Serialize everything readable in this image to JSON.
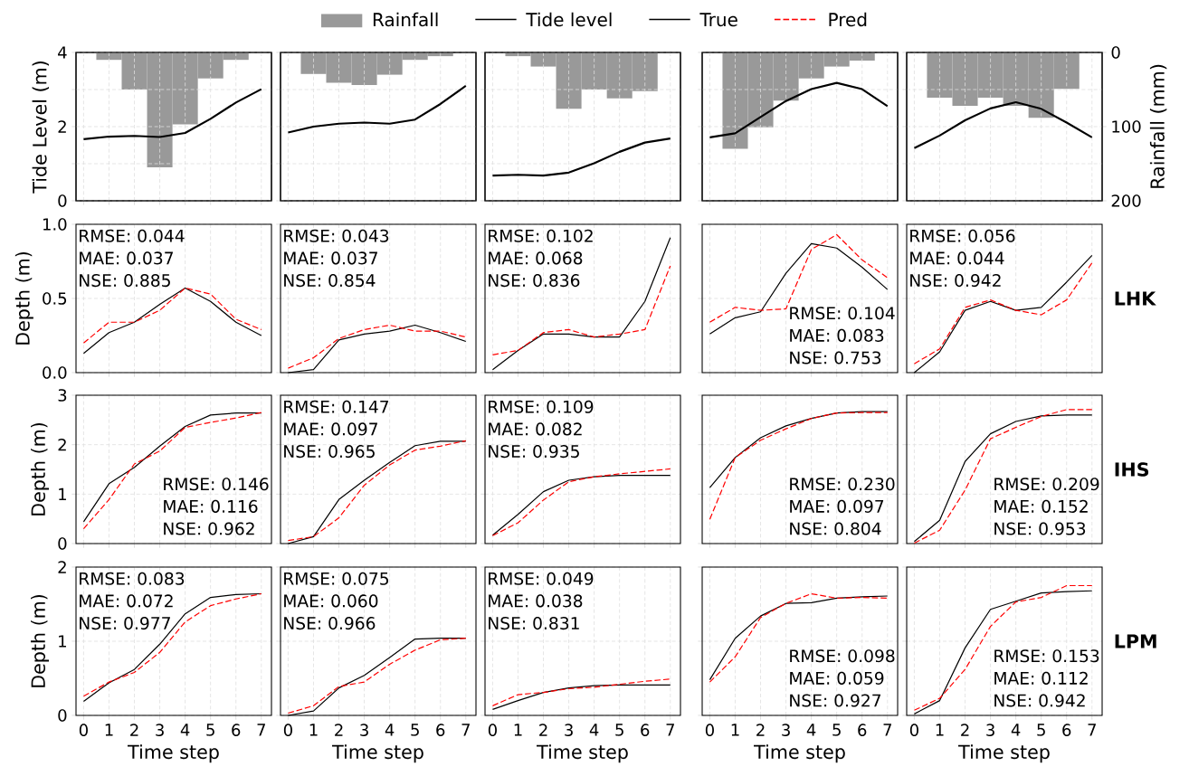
{
  "chart_data": [
    {
      "type": "line",
      "ylabel": "Tide Level (m)",
      "x": [
        0,
        1,
        2,
        3,
        4,
        5,
        6,
        7
      ],
      "xlim": [
        -0.3,
        7.4
      ],
      "xticks": [
        0,
        1,
        2,
        3,
        4,
        5,
        6,
        7
      ],
      "ylim": [
        0,
        4
      ],
      "yticks": [
        0,
        {
          "value": 1,
          "label": null
        },
        2,
        {
          "value": 3,
          "label": null
        },
        4
      ],
      "grid": true,
      "legend": "top",
      "tick_labels": "y",
      "series": [
        {
          "name": "Tide level",
          "color": "#000000",
          "values": [
            1.66,
            1.73,
            1.75,
            1.72,
            1.83,
            2.21,
            2.65,
            3.01
          ]
        }
      ]
    },
    {
      "type": "line",
      "x": [
        0,
        1,
        2,
        3,
        4,
        5,
        6,
        7
      ],
      "xlim": [
        -0.3,
        7.4
      ],
      "xticks": [
        0,
        1,
        2,
        3,
        4,
        5,
        6,
        7
      ],
      "ylim": [
        0,
        4
      ],
      "yticks": [
        0,
        {
          "value": 1,
          "label": null
        },
        2,
        {
          "value": 3,
          "label": null
        },
        4
      ],
      "grid": true,
      "tick_labels": false,
      "series": [
        {
          "color": "#000000",
          "values": [
            1.84,
            2.0,
            2.08,
            2.11,
            2.08,
            2.19,
            2.61,
            3.1
          ]
        }
      ]
    },
    {
      "type": "line",
      "x": [
        0,
        1,
        2,
        3,
        4,
        5,
        6,
        7
      ],
      "xlim": [
        -0.3,
        7.4
      ],
      "xticks": [
        0,
        1,
        2,
        3,
        4,
        5,
        6,
        7
      ],
      "ylim": [
        0,
        4
      ],
      "yticks": [
        0,
        {
          "value": 1,
          "label": null
        },
        2,
        {
          "value": 3,
          "label": null
        },
        4
      ],
      "grid": true,
      "tick_labels": false,
      "series": [
        {
          "color": "#000000",
          "values": [
            0.68,
            0.7,
            0.68,
            0.76,
            1.01,
            1.32,
            1.57,
            1.68
          ]
        }
      ]
    },
    {
      "type": "line",
      "x": [
        0,
        1,
        2,
        3,
        4,
        5,
        6,
        7
      ],
      "xlim": [
        -0.3,
        7.4
      ],
      "xticks": [
        0,
        1,
        2,
        3,
        4,
        5,
        6,
        7
      ],
      "ylim": [
        0,
        4
      ],
      "yticks": [
        0,
        {
          "value": 1,
          "label": null
        },
        2,
        {
          "value": 3,
          "label": null
        },
        4
      ],
      "grid": true,
      "tick_labels": false,
      "series": [
        {
          "color": "#000000",
          "values": [
            1.71,
            1.82,
            2.26,
            2.69,
            3.01,
            3.18,
            3.01,
            2.55
          ]
        }
      ]
    },
    {
      "type": "line",
      "x": [
        0,
        1,
        2,
        3,
        4,
        5,
        6,
        7
      ],
      "xlim": [
        -0.3,
        7.4
      ],
      "xticks": [
        0,
        1,
        2,
        3,
        4,
        5,
        6,
        7
      ],
      "ylim": [
        0,
        4
      ],
      "yticks": [
        0,
        {
          "value": 1,
          "label": null
        },
        2,
        {
          "value": 3,
          "label": null
        },
        4
      ],
      "grid": true,
      "tick_labels": false,
      "series": [
        {
          "color": "#000000",
          "values": [
            1.42,
            1.76,
            2.17,
            2.49,
            2.66,
            2.48,
            2.11,
            1.71
          ]
        }
      ]
    },
    {
      "type": "bar",
      "x": [
        1,
        2,
        3,
        4,
        5,
        6
      ],
      "xlim": [
        -0.3,
        7.4
      ],
      "y2lim": [
        200,
        0
      ],
      "y2ticks": [
        0,
        100,
        200
      ],
      "legend": "top",
      "tick_labels": false,
      "series": [
        {
          "name": "Rainfall",
          "axis": "y2",
          "color": "#999999",
          "values": [
            10,
            50,
            155,
            97,
            35,
            10
          ]
        }
      ]
    },
    {
      "type": "bar",
      "x": [
        1,
        2,
        3,
        4,
        5,
        6
      ],
      "xlim": [
        -0.3,
        7.4
      ],
      "y2lim": [
        200,
        0
      ],
      "y2ticks": [
        0,
        100,
        200
      ],
      "tick_labels": false,
      "series": [
        {
          "axis": "y2",
          "color": "#999999",
          "values": [
            29,
            41,
            44,
            30,
            10,
            5
          ]
        }
      ]
    },
    {
      "type": "bar",
      "x": [
        1,
        2,
        3,
        4,
        5,
        6
      ],
      "xlim": [
        -0.3,
        7.4
      ],
      "y2lim": [
        200,
        0
      ],
      "y2ticks": [
        0,
        100,
        200
      ],
      "tick_labels": false,
      "series": [
        {
          "axis": "y2",
          "color": "#999999",
          "values": [
            5,
            19,
            76,
            50,
            62,
            52
          ]
        }
      ]
    },
    {
      "type": "bar",
      "x": [
        1,
        2,
        3,
        4,
        5,
        6
      ],
      "xlim": [
        -0.3,
        7.4
      ],
      "y2lim": [
        200,
        0
      ],
      "y2ticks": [
        0,
        100,
        200
      ],
      "tick_labels": false,
      "series": [
        {
          "axis": "y2",
          "color": "#999999",
          "values": [
            130,
            101,
            65,
            35,
            19,
            11
          ]
        }
      ]
    },
    {
      "type": "bar",
      "y2label": "Rainfall (mm)",
      "x": [
        1,
        2,
        3,
        4,
        5,
        6
      ],
      "xlim": [
        -0.3,
        7.4
      ],
      "y2lim": [
        200,
        0
      ],
      "y2ticks": [
        0,
        100,
        200
      ],
      "tick_labels": "y2",
      "series": [
        {
          "axis": "y2",
          "color": "#999999",
          "values": [
            61,
            72,
            61,
            72,
            88,
            49
          ]
        }
      ]
    },
    {
      "type": "line",
      "ylabel": "Depth (m)",
      "x": [
        0,
        1,
        2,
        3,
        4,
        5,
        6,
        7
      ],
      "xlim": [
        -0.3,
        7.4
      ],
      "xticks": [
        0,
        1,
        2,
        3,
        4,
        5,
        6,
        7
      ],
      "ylim": [
        0,
        1
      ],
      "yticks": [
        {
          "value": 0,
          "label": "0.0"
        },
        {
          "value": 0.5,
          "label": "0.5"
        },
        {
          "value": 1,
          "label": "1.0"
        }
      ],
      "grid": true,
      "legend": "top",
      "tick_labels": "y",
      "annotations": [
        "RMSE: 0.044",
        "MAE: 0.037",
        "NSE: 0.885"
      ],
      "series": [
        {
          "name": "True",
          "color": "#000000",
          "values": [
            0.13,
            0.27,
            0.34,
            0.46,
            0.57,
            0.48,
            0.34,
            0.25
          ]
        },
        {
          "name": "Pred",
          "color": "#ff0000",
          "line_style": "dashed",
          "values": [
            0.2,
            0.34,
            0.34,
            0.42,
            0.57,
            0.53,
            0.36,
            0.29
          ]
        }
      ]
    },
    {
      "type": "line",
      "x": [
        0,
        1,
        2,
        3,
        4,
        5,
        6,
        7
      ],
      "xlim": [
        -0.3,
        7.4
      ],
      "xticks": [
        0,
        1,
        2,
        3,
        4,
        5,
        6,
        7
      ],
      "ylim": [
        0,
        1
      ],
      "yticks": [
        0,
        0.5,
        1
      ],
      "grid": true,
      "tick_labels": false,
      "annotations": [
        "RMSE: 0.043",
        "MAE: 0.037",
        "NSE: 0.854"
      ],
      "series": [
        {
          "color": "#000000",
          "values": [
            0.0,
            0.02,
            0.22,
            0.26,
            0.28,
            0.32,
            0.27,
            0.21
          ]
        },
        {
          "color": "#ff0000",
          "line_style": "dashed",
          "values": [
            0.03,
            0.1,
            0.23,
            0.29,
            0.32,
            0.28,
            0.28,
            0.24
          ]
        }
      ]
    },
    {
      "type": "line",
      "x": [
        0,
        1,
        2,
        3,
        4,
        5,
        6,
        7
      ],
      "xlim": [
        -0.3,
        7.4
      ],
      "xticks": [
        0,
        1,
        2,
        3,
        4,
        5,
        6,
        7
      ],
      "ylim": [
        0,
        1
      ],
      "yticks": [
        0,
        0.5,
        1
      ],
      "grid": true,
      "tick_labels": false,
      "annotations": [
        "RMSE: 0.102",
        "MAE: 0.068",
        "NSE: 0.836"
      ],
      "series": [
        {
          "color": "#000000",
          "values": [
            0.02,
            0.15,
            0.26,
            0.26,
            0.24,
            0.24,
            0.48,
            0.91
          ]
        },
        {
          "color": "#ff0000",
          "line_style": "dashed",
          "values": [
            0.12,
            0.15,
            0.27,
            0.29,
            0.24,
            0.26,
            0.29,
            0.72
          ]
        }
      ]
    },
    {
      "type": "line",
      "x": [
        0,
        1,
        2,
        3,
        4,
        5,
        6,
        7
      ],
      "xlim": [
        -0.3,
        7.4
      ],
      "xticks": [
        0,
        1,
        2,
        3,
        4,
        5,
        6,
        7
      ],
      "ylim": [
        0,
        1
      ],
      "yticks": [
        0,
        0.5,
        1
      ],
      "grid": true,
      "tick_labels": false,
      "annotations": [
        "RMSE: 0.104",
        "MAE: 0.083",
        "NSE: 0.753"
      ],
      "series": [
        {
          "color": "#000000",
          "values": [
            0.26,
            0.37,
            0.41,
            0.67,
            0.87,
            0.84,
            0.71,
            0.56
          ]
        },
        {
          "color": "#ff0000",
          "line_style": "dashed",
          "values": [
            0.34,
            0.44,
            0.42,
            0.43,
            0.83,
            0.93,
            0.76,
            0.64
          ]
        }
      ]
    },
    {
      "type": "line",
      "y2label": "LHK",
      "x": [
        0,
        1,
        2,
        3,
        4,
        5,
        6,
        7
      ],
      "xlim": [
        -0.3,
        7.4
      ],
      "xticks": [
        0,
        1,
        2,
        3,
        4,
        5,
        6,
        7
      ],
      "ylim": [
        0,
        1
      ],
      "yticks": [
        0,
        0.5,
        1
      ],
      "grid": true,
      "tick_labels": false,
      "annotations": [
        "RMSE: 0.056",
        "MAE: 0.044",
        "NSE: 0.942"
      ],
      "series": [
        {
          "color": "#000000",
          "values": [
            0.0,
            0.14,
            0.42,
            0.48,
            0.42,
            0.44,
            0.61,
            0.79
          ]
        },
        {
          "color": "#ff0000",
          "line_style": "dashed",
          "values": [
            0.06,
            0.16,
            0.44,
            0.49,
            0.42,
            0.39,
            0.49,
            0.74
          ]
        }
      ]
    },
    {
      "type": "line",
      "ylabel": "Depth (m)",
      "x": [
        0,
        1,
        2,
        3,
        4,
        5,
        6,
        7
      ],
      "xlim": [
        -0.3,
        7.4
      ],
      "xticks": [
        0,
        1,
        2,
        3,
        4,
        5,
        6,
        7
      ],
      "ylim": [
        0,
        3
      ],
      "yticks": [
        0,
        1,
        2,
        3
      ],
      "grid": true,
      "tick_labels": "y",
      "annotations": [
        "RMSE: 0.146",
        "MAE: 0.116",
        "NSE: 0.962"
      ],
      "series": [
        {
          "color": "#000000",
          "values": [
            0.44,
            1.21,
            1.54,
            1.97,
            2.37,
            2.6,
            2.64,
            2.64
          ]
        },
        {
          "color": "#ff0000",
          "line_style": "dashed",
          "values": [
            0.3,
            0.89,
            1.61,
            1.87,
            2.35,
            2.45,
            2.54,
            2.65
          ]
        }
      ]
    },
    {
      "type": "line",
      "x": [
        0,
        1,
        2,
        3,
        4,
        5,
        6,
        7
      ],
      "xlim": [
        -0.3,
        7.4
      ],
      "xticks": [
        0,
        1,
        2,
        3,
        4,
        5,
        6,
        7
      ],
      "ylim": [
        0,
        3
      ],
      "yticks": [
        0,
        1,
        2,
        3
      ],
      "grid": true,
      "tick_labels": false,
      "annotations": [
        "RMSE: 0.147",
        "MAE: 0.097",
        "NSE: 0.965"
      ],
      "series": [
        {
          "color": "#000000",
          "values": [
            0.0,
            0.14,
            0.89,
            1.28,
            1.64,
            1.98,
            2.07,
            2.07
          ]
        },
        {
          "color": "#ff0000",
          "line_style": "dashed",
          "values": [
            0.06,
            0.14,
            0.52,
            1.18,
            1.59,
            1.89,
            1.97,
            2.08
          ]
        }
      ]
    },
    {
      "type": "line",
      "x": [
        0,
        1,
        2,
        3,
        4,
        5,
        6,
        7
      ],
      "xlim": [
        -0.3,
        7.4
      ],
      "xticks": [
        0,
        1,
        2,
        3,
        4,
        5,
        6,
        7
      ],
      "ylim": [
        0,
        3
      ],
      "yticks": [
        0,
        1,
        2,
        3
      ],
      "grid": true,
      "tick_labels": false,
      "annotations": [
        "RMSE: 0.109",
        "MAE: 0.082",
        "NSE: 0.935"
      ],
      "series": [
        {
          "color": "#000000",
          "values": [
            0.17,
            0.59,
            1.05,
            1.28,
            1.35,
            1.38,
            1.38,
            1.38
          ]
        },
        {
          "color": "#ff0000",
          "line_style": "dashed",
          "values": [
            0.16,
            0.42,
            0.88,
            1.25,
            1.35,
            1.41,
            1.46,
            1.51
          ]
        }
      ]
    },
    {
      "type": "line",
      "x": [
        0,
        1,
        2,
        3,
        4,
        5,
        6,
        7
      ],
      "xlim": [
        -0.3,
        7.4
      ],
      "xticks": [
        0,
        1,
        2,
        3,
        4,
        5,
        6,
        7
      ],
      "ylim": [
        0,
        3
      ],
      "yticks": [
        0,
        1,
        2,
        3
      ],
      "grid": true,
      "tick_labels": false,
      "annotations": [
        "RMSE: 0.230",
        "MAE: 0.097",
        "NSE: 0.804"
      ],
      "series": [
        {
          "color": "#000000",
          "values": [
            1.13,
            1.74,
            2.14,
            2.38,
            2.53,
            2.64,
            2.67,
            2.67
          ]
        },
        {
          "color": "#ff0000",
          "line_style": "dashed",
          "values": [
            0.49,
            1.74,
            2.09,
            2.32,
            2.53,
            2.64,
            2.65,
            2.65
          ]
        }
      ]
    },
    {
      "type": "line",
      "y2label": "IHS",
      "x": [
        0,
        1,
        2,
        3,
        4,
        5,
        6,
        7
      ],
      "xlim": [
        -0.3,
        7.4
      ],
      "xticks": [
        0,
        1,
        2,
        3,
        4,
        5,
        6,
        7
      ],
      "ylim": [
        0,
        3
      ],
      "yticks": [
        0,
        1,
        2,
        3
      ],
      "grid": true,
      "tick_labels": false,
      "annotations": [
        "RMSE: 0.209",
        "MAE: 0.152",
        "NSE: 0.953"
      ],
      "series": [
        {
          "color": "#000000",
          "values": [
            0.04,
            0.47,
            1.66,
            2.22,
            2.47,
            2.58,
            2.6,
            2.6
          ]
        },
        {
          "color": "#ff0000",
          "line_style": "dashed",
          "values": [
            0.01,
            0.27,
            1.08,
            2.12,
            2.35,
            2.57,
            2.71,
            2.71
          ]
        }
      ]
    },
    {
      "type": "line",
      "ylabel": "Depth (m)",
      "xlabel": "Time step",
      "x": [
        0,
        1,
        2,
        3,
        4,
        5,
        6,
        7
      ],
      "xlim": [
        -0.3,
        7.4
      ],
      "xticks": [
        0,
        1,
        2,
        3,
        4,
        5,
        6,
        7
      ],
      "ylim": [
        0,
        2
      ],
      "yticks": [
        0,
        1,
        2
      ],
      "grid": true,
      "tick_labels": "xy",
      "annotations": [
        "RMSE: 0.083",
        "MAE: 0.072",
        "NSE: 0.977"
      ],
      "series": [
        {
          "color": "#000000",
          "values": [
            0.19,
            0.44,
            0.62,
            0.96,
            1.37,
            1.59,
            1.63,
            1.64
          ]
        },
        {
          "color": "#ff0000",
          "line_style": "dashed",
          "values": [
            0.26,
            0.45,
            0.58,
            0.85,
            1.26,
            1.48,
            1.57,
            1.64
          ]
        }
      ]
    },
    {
      "type": "line",
      "xlabel": "Time step",
      "x": [
        0,
        1,
        2,
        3,
        4,
        5,
        6,
        7
      ],
      "xlim": [
        -0.3,
        7.4
      ],
      "xticks": [
        0,
        1,
        2,
        3,
        4,
        5,
        6,
        7
      ],
      "ylim": [
        0,
        2
      ],
      "yticks": [
        0,
        1,
        2
      ],
      "grid": true,
      "tick_labels": "x",
      "annotations": [
        "RMSE: 0.075",
        "MAE: 0.060",
        "NSE: 0.966"
      ],
      "series": [
        {
          "color": "#000000",
          "values": [
            0.0,
            0.06,
            0.37,
            0.54,
            0.78,
            1.03,
            1.04,
            1.04
          ]
        },
        {
          "color": "#ff0000",
          "line_style": "dashed",
          "values": [
            0.03,
            0.13,
            0.39,
            0.45,
            0.69,
            0.88,
            1.02,
            1.04
          ]
        }
      ]
    },
    {
      "type": "line",
      "xlabel": "Time step",
      "x": [
        0,
        1,
        2,
        3,
        4,
        5,
        6,
        7
      ],
      "xlim": [
        -0.3,
        7.4
      ],
      "xticks": [
        0,
        1,
        2,
        3,
        4,
        5,
        6,
        7
      ],
      "ylim": [
        0,
        2
      ],
      "yticks": [
        0,
        1,
        2
      ],
      "grid": true,
      "tick_labels": "x",
      "annotations": [
        "RMSE: 0.049",
        "MAE: 0.038",
        "NSE: 0.831"
      ],
      "series": [
        {
          "color": "#000000",
          "values": [
            0.08,
            0.2,
            0.31,
            0.37,
            0.4,
            0.41,
            0.41,
            0.41
          ]
        },
        {
          "color": "#ff0000",
          "line_style": "dashed",
          "values": [
            0.13,
            0.28,
            0.31,
            0.36,
            0.38,
            0.42,
            0.46,
            0.49
          ]
        }
      ]
    },
    {
      "type": "line",
      "xlabel": "Time step",
      "x": [
        0,
        1,
        2,
        3,
        4,
        5,
        6,
        7
      ],
      "xlim": [
        -0.3,
        7.4
      ],
      "xticks": [
        0,
        1,
        2,
        3,
        4,
        5,
        6,
        7
      ],
      "ylim": [
        0,
        2
      ],
      "yticks": [
        0,
        1,
        2
      ],
      "grid": true,
      "tick_labels": "x",
      "annotations": [
        "RMSE: 0.098",
        "MAE: 0.059",
        "NSE: 0.927"
      ],
      "series": [
        {
          "color": "#000000",
          "values": [
            0.48,
            1.04,
            1.34,
            1.51,
            1.52,
            1.58,
            1.6,
            1.61
          ]
        },
        {
          "color": "#ff0000",
          "line_style": "dashed",
          "values": [
            0.45,
            0.79,
            1.32,
            1.51,
            1.64,
            1.58,
            1.59,
            1.58
          ]
        }
      ]
    },
    {
      "type": "line",
      "xlabel": "Time step",
      "y2label": "LPM",
      "x": [
        0,
        1,
        2,
        3,
        4,
        5,
        6,
        7
      ],
      "xlim": [
        -0.3,
        7.4
      ],
      "xticks": [
        0,
        1,
        2,
        3,
        4,
        5,
        6,
        7
      ],
      "ylim": [
        0,
        2
      ],
      "yticks": [
        0,
        1,
        2
      ],
      "grid": true,
      "tick_labels": "x",
      "annotations": [
        "RMSE: 0.153",
        "MAE: 0.112",
        "NSE: 0.942"
      ],
      "series": [
        {
          "color": "#000000",
          "values": [
            0.02,
            0.2,
            0.91,
            1.43,
            1.54,
            1.65,
            1.67,
            1.68
          ]
        },
        {
          "color": "#ff0000",
          "line_style": "dashed",
          "values": [
            0.07,
            0.23,
            0.62,
            1.2,
            1.53,
            1.59,
            1.75,
            1.75
          ]
        }
      ]
    }
  ]
}
